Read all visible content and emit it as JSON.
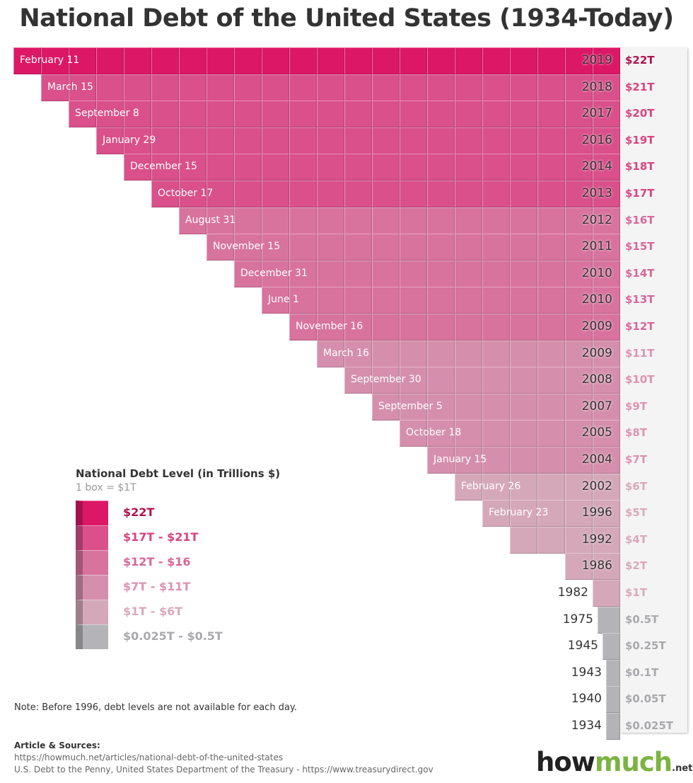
{
  "title": "National Debt of the United States (1934-Today)",
  "chart_data": {
    "type": "bar",
    "orientation": "horizontal",
    "title": "National Debt of the United States (1934-Today)",
    "unit": "1 box = $1T",
    "rows": [
      {
        "date": "February 11",
        "year": "2019",
        "label": "$22T",
        "value": 22
      },
      {
        "date": "March 15",
        "year": "2018",
        "label": "$21T",
        "value": 21
      },
      {
        "date": "September 8",
        "year": "2017",
        "label": "$20T",
        "value": 20
      },
      {
        "date": "January 29",
        "year": "2016",
        "label": "$19T",
        "value": 19
      },
      {
        "date": "December 15",
        "year": "2014",
        "label": "$18T",
        "value": 18
      },
      {
        "date": "October 17",
        "year": "2013",
        "label": "$17T",
        "value": 17
      },
      {
        "date": "August 31",
        "year": "2012",
        "label": "$16T",
        "value": 16
      },
      {
        "date": "November 15",
        "year": "2011",
        "label": "$15T",
        "value": 15
      },
      {
        "date": "December 31",
        "year": "2010",
        "label": "$14T",
        "value": 14
      },
      {
        "date": "June 1",
        "year": "2010",
        "label": "$13T",
        "value": 13
      },
      {
        "date": "November 16",
        "year": "2009",
        "label": "$12T",
        "value": 12
      },
      {
        "date": "March 16",
        "year": "2009",
        "label": "$11T",
        "value": 11
      },
      {
        "date": "September 30",
        "year": "2008",
        "label": "$10T",
        "value": 10
      },
      {
        "date": "September 5",
        "year": "2007",
        "label": "$9T",
        "value": 9
      },
      {
        "date": "October 18",
        "year": "2005",
        "label": "$8T",
        "value": 8
      },
      {
        "date": "January 15",
        "year": "2004",
        "label": "$7T",
        "value": 7
      },
      {
        "date": "February 26",
        "year": "2002",
        "label": "$6T",
        "value": 6
      },
      {
        "date": "February 23",
        "year": "1996",
        "label": "$5T",
        "value": 5
      },
      {
        "date": "",
        "year": "1992",
        "label": "$4T",
        "value": 4
      },
      {
        "date": "",
        "year": "1986",
        "label": "$2T",
        "value": 2
      },
      {
        "date": "",
        "year": "1982",
        "label": "$1T",
        "value": 1
      },
      {
        "date": "",
        "year": "1975",
        "label": "$0.5T",
        "value": 0.5
      },
      {
        "date": "",
        "year": "1945",
        "label": "$0.25T",
        "value": 0.25
      },
      {
        "date": "",
        "year": "1943",
        "label": "$0.1T",
        "value": 0.1
      },
      {
        "date": "",
        "year": "1940",
        "label": "$0.05T",
        "value": 0.05
      },
      {
        "date": "",
        "year": "1934",
        "label": "$0.025T",
        "value": 0.025
      }
    ],
    "legend": {
      "title": "National Debt Level (in Trillions $)",
      "subtitle": "1 box = $1T",
      "items": [
        {
          "label": "$22T",
          "color": "#dc1766",
          "text_color": "#b0124d"
        },
        {
          "label": "$17T - $21T",
          "color": "#d9508a",
          "text_color": "#d6457f"
        },
        {
          "label": "$12T - $16",
          "color": "#d8739e",
          "text_color": "#d7679a"
        },
        {
          "label": "$7T - $11T",
          "color": "#d58fac",
          "text_color": "#dc93b1"
        },
        {
          "label": "$1T - $6T",
          "color": "#d5a8b9",
          "text_color": "#d9a9bb"
        },
        {
          "label": "$0.025T - $0.5T",
          "color": "#b4b4b8",
          "text_color": "#a9a9ad"
        }
      ]
    }
  },
  "note": "Note: Before 1996, debt levels are not available for each day.",
  "sources": {
    "heading": "Article & Sources:",
    "lines": [
      "https://howmuch.net/articles/national-debt-of-the-united-states",
      "U.S. Debt to the Penny, United States Department of the Treasury - https://www.treasurydirect.gov"
    ]
  },
  "logo": {
    "part1": "how",
    "part2": "much",
    "suffix": ".net"
  }
}
